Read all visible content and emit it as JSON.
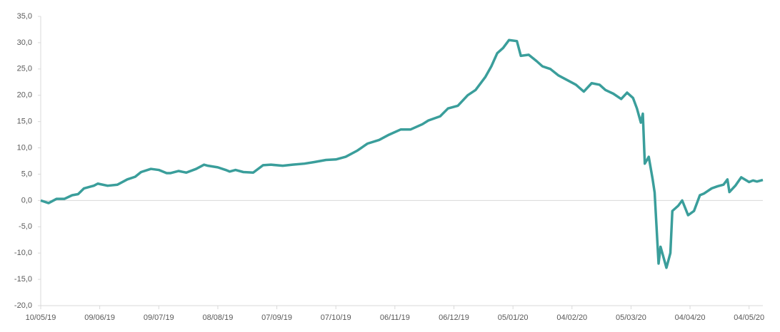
{
  "chart_data": {
    "type": "line",
    "x": [
      "2019-05-10",
      "2019-05-14",
      "2019-05-18",
      "2019-05-22",
      "2019-05-26",
      "2019-05-29",
      "2019-06-01",
      "2019-06-06",
      "2019-06-08",
      "2019-06-13",
      "2019-06-18",
      "2019-06-23",
      "2019-06-27",
      "2019-06-30",
      "2019-07-05",
      "2019-07-09",
      "2019-07-13",
      "2019-07-15",
      "2019-07-19",
      "2019-07-23",
      "2019-07-28",
      "2019-08-01",
      "2019-08-03",
      "2019-08-08",
      "2019-08-12",
      "2019-08-14",
      "2019-08-17",
      "2019-08-21",
      "2019-08-26",
      "2019-08-31",
      "2019-09-04",
      "2019-09-10",
      "2019-09-15",
      "2019-09-21",
      "2019-09-26",
      "2019-10-02",
      "2019-10-07",
      "2019-10-12",
      "2019-10-18",
      "2019-10-23",
      "2019-10-29",
      "2019-11-03",
      "2019-11-09",
      "2019-11-14",
      "2019-11-20",
      "2019-11-23",
      "2019-11-29",
      "2019-12-03",
      "2019-12-08",
      "2019-12-13",
      "2019-12-17",
      "2019-12-22",
      "2019-12-25",
      "2019-12-28",
      "2019-12-31",
      "2020-01-03",
      "2020-01-07",
      "2020-01-09",
      "2020-01-13",
      "2020-01-17",
      "2020-01-20",
      "2020-01-24",
      "2020-01-28",
      "2020-02-01",
      "2020-02-06",
      "2020-02-10",
      "2020-02-14",
      "2020-02-18",
      "2020-02-21",
      "2020-02-25",
      "2020-02-29",
      "2020-03-03",
      "2020-03-06",
      "2020-03-08",
      "2020-03-10",
      "2020-03-11",
      "2020-03-12",
      "2020-03-14",
      "2020-03-16",
      "2020-03-17",
      "2020-03-19",
      "2020-03-20",
      "2020-03-23",
      "2020-03-25",
      "2020-03-26",
      "2020-03-29",
      "2020-03-31",
      "2020-04-03",
      "2020-04-06",
      "2020-04-09",
      "2020-04-11",
      "2020-04-15",
      "2020-04-18",
      "2020-04-21",
      "2020-04-23",
      "2020-04-24",
      "2020-04-27",
      "2020-04-30",
      "2020-05-04",
      "2020-05-06",
      "2020-05-08",
      "2020-05-11"
    ],
    "series": [
      {
        "color": "#3a9e9b",
        "values": [
          0,
          -0.5,
          0.3,
          0.3,
          1.0,
          1.2,
          2.3,
          2.8,
          3.2,
          2.8,
          3.0,
          4.0,
          4.5,
          5.4,
          6.0,
          5.8,
          5.2,
          5.2,
          5.6,
          5.3,
          6.0,
          6.8,
          6.6,
          6.3,
          5.8,
          5.5,
          5.8,
          5.4,
          5.3,
          6.7,
          6.8,
          6.6,
          6.8,
          7.0,
          7.3,
          7.7,
          7.8,
          8.3,
          9.5,
          10.8,
          11.5,
          12.5,
          13.5,
          13.5,
          14.5,
          15.2,
          16.0,
          17.5,
          18.0,
          20.0,
          21.0,
          23.5,
          25.5,
          28.0,
          29.0,
          30.5,
          30.3,
          27.5,
          27.7,
          26.5,
          25.5,
          25.0,
          23.8,
          23.0,
          22.0,
          20.7,
          22.3,
          22.0,
          21.0,
          20.3,
          19.3,
          20.5,
          19.5,
          17.5,
          14.8,
          16.5,
          7.0,
          8.3,
          4.0,
          1.5,
          -12.0,
          -8.8,
          -12.8,
          -10.0,
          -2.0,
          -1.0,
          0.0,
          -2.8,
          -2.0,
          1.0,
          1.3,
          2.3,
          2.7,
          3.0,
          4.0,
          1.6,
          2.8,
          4.4,
          3.5,
          3.8,
          3.6,
          3.9
        ]
      }
    ],
    "xlim": [
      "2019-05-10",
      "2020-05-11"
    ],
    "xticks": [
      {
        "value": "2019-05-10",
        "label": "10/05/19"
      },
      {
        "value": "2019-06-09",
        "label": "09/06/19"
      },
      {
        "value": "2019-07-09",
        "label": "09/07/19"
      },
      {
        "value": "2019-08-08",
        "label": "08/08/19"
      },
      {
        "value": "2019-09-07",
        "label": "07/09/19"
      },
      {
        "value": "2019-10-07",
        "label": "07/10/19"
      },
      {
        "value": "2019-11-06",
        "label": "06/11/19"
      },
      {
        "value": "2019-12-06",
        "label": "06/12/19"
      },
      {
        "value": "2020-01-05",
        "label": "05/01/20"
      },
      {
        "value": "2020-02-04",
        "label": "04/02/20"
      },
      {
        "value": "2020-03-05",
        "label": "05/03/20"
      },
      {
        "value": "2020-04-04",
        "label": "04/04/20"
      },
      {
        "value": "2020-05-04",
        "label": "04/05/20"
      }
    ],
    "ylim": [
      -20,
      35
    ],
    "yticks": [
      {
        "value": -20,
        "label": "-20,0"
      },
      {
        "value": -15,
        "label": "-15,0"
      },
      {
        "value": -10,
        "label": "-10,0"
      },
      {
        "value": -5,
        "label": "-5,0"
      },
      {
        "value": 0,
        "label": "0,0"
      },
      {
        "value": 5,
        "label": "5,0"
      },
      {
        "value": 10,
        "label": "10,0"
      },
      {
        "value": 15,
        "label": "15,0"
      },
      {
        "value": 20,
        "label": "20,0"
      },
      {
        "value": 25,
        "label": "25,0"
      },
      {
        "value": 30,
        "label": "30,0"
      },
      {
        "value": 35,
        "label": "35,0"
      }
    ],
    "grid": false
  }
}
